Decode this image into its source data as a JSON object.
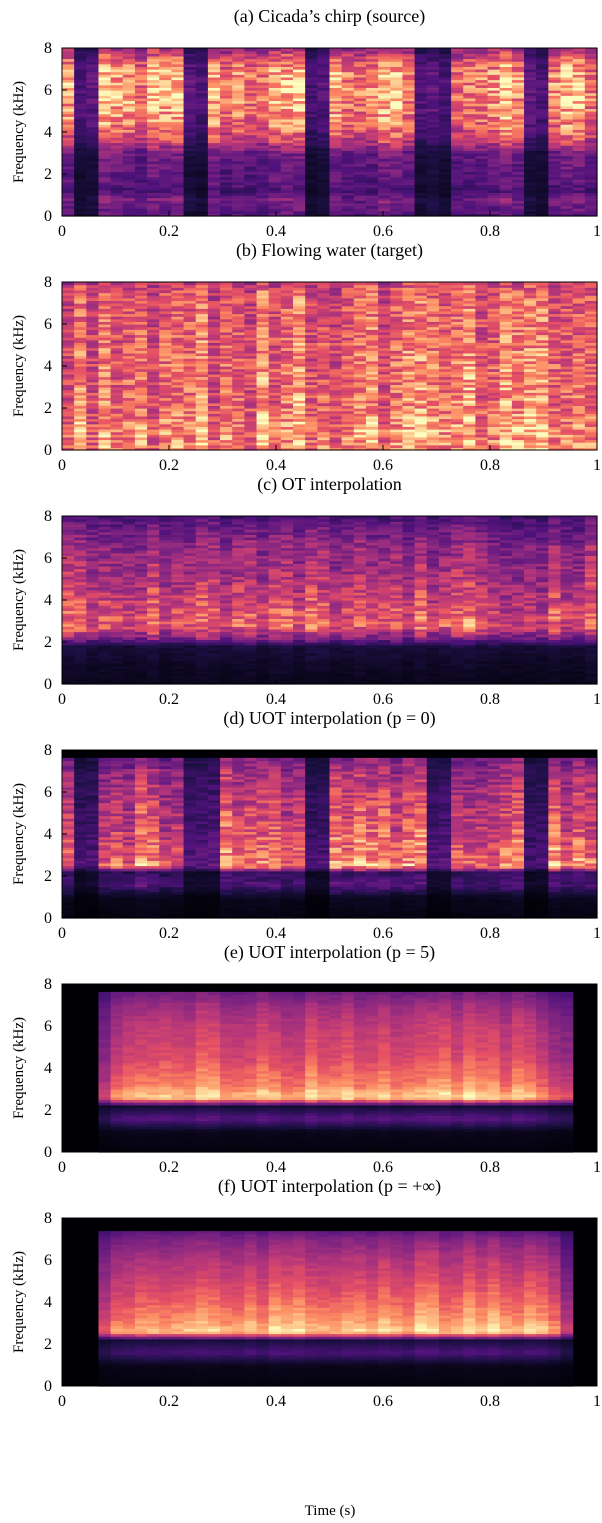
{
  "figure": {
    "xlabel": "Time (s)"
  },
  "chart_data": [
    {
      "type": "heatmap",
      "title": "(a) Cicada’s chirp (source)",
      "ylabel": "Frequency (kHz)",
      "xlim": [
        0,
        1
      ],
      "ylim": [
        0,
        8
      ],
      "xticks": [
        0,
        0.2,
        0.4,
        0.6,
        0.8,
        1
      ],
      "yticks": [
        0,
        2,
        4,
        6,
        8
      ],
      "active_time": [
        0.0,
        1.0
      ],
      "band_hz": [
        0.0,
        8.0
      ],
      "gaps": [
        0.04,
        0.25,
        0.48,
        0.69,
        0.89
      ],
      "gap_width": 0.03,
      "profile": [
        [
          0,
          0.28
        ],
        [
          0.3,
          0.32
        ],
        [
          0.8,
          0.38
        ],
        [
          1.2,
          0.25
        ],
        [
          1.6,
          0.3
        ],
        [
          2.2,
          0.32
        ],
        [
          3.0,
          0.35
        ],
        [
          3.6,
          0.6
        ],
        [
          4.2,
          0.75
        ],
        [
          5.0,
          0.82
        ],
        [
          6.0,
          0.88
        ],
        [
          6.8,
          0.85
        ],
        [
          7.4,
          0.72
        ],
        [
          7.8,
          0.55
        ],
        [
          8.0,
          0.5
        ]
      ],
      "smooth": false
    },
    {
      "type": "heatmap",
      "title": "(b) Flowing water (target)",
      "ylabel": "Frequency (kHz)",
      "xlim": [
        0,
        1
      ],
      "ylim": [
        0,
        8
      ],
      "xticks": [
        0,
        0.2,
        0.4,
        0.6,
        0.8,
        1
      ],
      "yticks": [
        0,
        2,
        4,
        6,
        8
      ],
      "active_time": [
        0.0,
        1.0
      ],
      "band_hz": [
        0.0,
        8.0
      ],
      "gaps": [],
      "gap_width": 0,
      "profile": [
        [
          0,
          0.85
        ],
        [
          1.0,
          0.85
        ],
        [
          2.0,
          0.78
        ],
        [
          4.0,
          0.76
        ],
        [
          6.0,
          0.72
        ],
        [
          7.5,
          0.7
        ],
        [
          8.0,
          0.6
        ]
      ],
      "smooth": false
    },
    {
      "type": "heatmap",
      "title": "(c) OT interpolation",
      "ylabel": "Frequency (kHz)",
      "xlim": [
        0,
        1
      ],
      "ylim": [
        0,
        8
      ],
      "xticks": [
        0,
        0.2,
        0.4,
        0.6,
        0.8,
        1
      ],
      "yticks": [
        0,
        2,
        4,
        6,
        8
      ],
      "active_time": [
        0.0,
        1.0
      ],
      "band_hz": [
        0.0,
        8.0
      ],
      "gaps": [],
      "gap_width": 0,
      "profile": [
        [
          0,
          0.05
        ],
        [
          1.0,
          0.08
        ],
        [
          1.8,
          0.12
        ],
        [
          2.2,
          0.4
        ],
        [
          2.8,
          0.72
        ],
        [
          3.5,
          0.66
        ],
        [
          5.0,
          0.52
        ],
        [
          6.5,
          0.45
        ],
        [
          7.8,
          0.3
        ],
        [
          8.0,
          0.25
        ]
      ],
      "smooth": false
    },
    {
      "type": "heatmap",
      "title": "(d) UOT interpolation (p = 0)",
      "ylabel": "Frequency (kHz)",
      "xlim": [
        0,
        1
      ],
      "ylim": [
        0,
        8
      ],
      "xticks": [
        0,
        0.2,
        0.4,
        0.6,
        0.8,
        1
      ],
      "yticks": [
        0,
        2,
        4,
        6,
        8
      ],
      "active_time": [
        0.0,
        1.0
      ],
      "band_hz": [
        0.0,
        7.6
      ],
      "gaps": [
        0.04,
        0.26,
        0.48,
        0.7,
        0.89
      ],
      "gap_width": 0.03,
      "profile": [
        [
          0,
          0.03
        ],
        [
          1.0,
          0.06
        ],
        [
          1.6,
          0.28
        ],
        [
          2.2,
          0.2
        ],
        [
          2.5,
          0.85
        ],
        [
          3.2,
          0.75
        ],
        [
          4.5,
          0.65
        ],
        [
          6.0,
          0.58
        ],
        [
          7.0,
          0.5
        ],
        [
          7.6,
          0.4
        ]
      ],
      "smooth": false
    },
    {
      "type": "heatmap",
      "title": "(e) UOT interpolation (p = 5)",
      "ylabel": "Frequency (kHz)",
      "xlim": [
        0,
        1
      ],
      "ylim": [
        0,
        8
      ],
      "xticks": [
        0,
        0.2,
        0.4,
        0.6,
        0.8,
        1
      ],
      "yticks": [
        0,
        2,
        4,
        6,
        8
      ],
      "active_time": [
        0.06,
        0.96
      ],
      "band_hz": [
        0.0,
        7.6
      ],
      "gaps": [],
      "gap_width": 0,
      "profile": [
        [
          0,
          0.02
        ],
        [
          1.0,
          0.05
        ],
        [
          1.6,
          0.28
        ],
        [
          2.2,
          0.1
        ],
        [
          2.6,
          0.95
        ],
        [
          3.2,
          0.78
        ],
        [
          4.5,
          0.62
        ],
        [
          6.0,
          0.55
        ],
        [
          7.0,
          0.45
        ],
        [
          7.6,
          0.35
        ]
      ],
      "smooth": true
    },
    {
      "type": "heatmap",
      "title": "(f) UOT interpolation (p = +∞)",
      "ylabel": "Frequency (kHz)",
      "xlim": [
        0,
        1
      ],
      "ylim": [
        0,
        8
      ],
      "xticks": [
        0,
        0.2,
        0.4,
        0.6,
        0.8,
        1
      ],
      "yticks": [
        0,
        2,
        4,
        6,
        8
      ],
      "active_time": [
        0.06,
        0.96
      ],
      "band_hz": [
        0.0,
        7.4
      ],
      "gaps": [],
      "gap_width": 0,
      "profile": [
        [
          0,
          0.02
        ],
        [
          1.0,
          0.05
        ],
        [
          1.6,
          0.25
        ],
        [
          2.2,
          0.12
        ],
        [
          2.6,
          0.96
        ],
        [
          3.2,
          0.82
        ],
        [
          4.5,
          0.66
        ],
        [
          6.0,
          0.52
        ],
        [
          7.0,
          0.4
        ],
        [
          7.4,
          0.3
        ]
      ],
      "smooth": true
    }
  ]
}
